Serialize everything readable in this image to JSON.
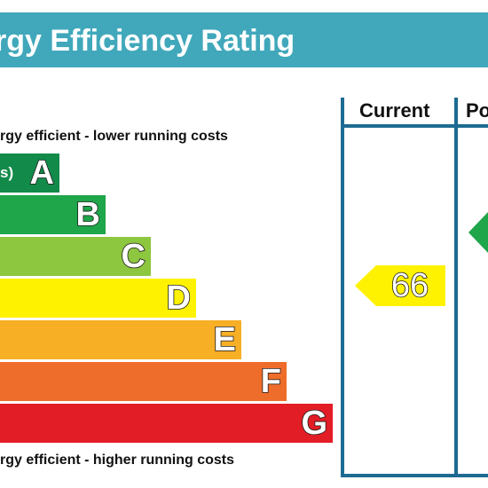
{
  "title": "rgy Efficiency Rating",
  "top_caption": "rgy efficient - lower running costs",
  "bottom_caption": "rgy efficient - higher running costs",
  "columns": {
    "current": "Current",
    "potential": "Po"
  },
  "bands": [
    {
      "letter": "A",
      "range": "s)",
      "color": "#128a4a"
    },
    {
      "letter": "B",
      "range": "",
      "color": "#1fa54a"
    },
    {
      "letter": "C",
      "range": "",
      "color": "#8dc63f"
    },
    {
      "letter": "D",
      "range": "",
      "color": "#fff200"
    },
    {
      "letter": "E",
      "range": "",
      "color": "#f7af26"
    },
    {
      "letter": "F",
      "range": "",
      "color": "#ef6d2a"
    },
    {
      "letter": "G",
      "range": "",
      "color": "#e31d25"
    }
  ],
  "current_rating": {
    "value": "66",
    "band": "D",
    "color": "#fff200"
  },
  "potential_rating": {
    "value": "",
    "band": "B",
    "color": "#1fa54a"
  }
}
